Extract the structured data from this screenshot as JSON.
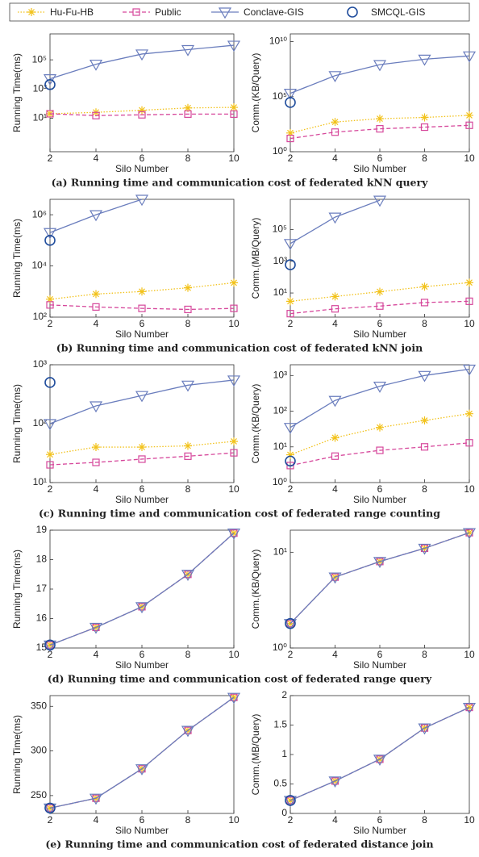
{
  "captions": [
    "(a) Running time and communication cost of federated kNN query",
    "(b) Running time and communication cost of federated kNN join",
    "(c) Running time and communication cost of federated range counting",
    "(d) Running time and communication cost of federated range query",
    "(e) Running time and communication cost of federated distance join"
  ],
  "chart_data": [
    {
      "type": "line",
      "xlabel": "Silo Number",
      "ylabel": "Running Time(ms)",
      "x": [
        2,
        4,
        6,
        8,
        10
      ],
      "xlim": [
        2,
        10
      ],
      "xticks": [
        2,
        4,
        6,
        8,
        10
      ],
      "log_y": true,
      "ylim": [
        0.05,
        6000000
      ],
      "yticks": [
        {
          "value": 10,
          "label": "10¹"
        },
        {
          "value": 1000,
          "label": "10³"
        },
        {
          "value": 100000,
          "label": "10⁵"
        }
      ],
      "series": [
        {
          "name": "Hu-Fu-HB",
          "color": "#f2c21b",
          "marker": "asterisk",
          "line_style": "dotted",
          "values": [
            20,
            25,
            35,
            50,
            55
          ]
        },
        {
          "name": "Public",
          "color": "#d6479b",
          "marker": "square",
          "line_style": "dashed",
          "values": [
            20,
            15,
            17,
            19,
            19
          ]
        },
        {
          "name": "Conclave-GIS",
          "color": "#6a7dbd",
          "marker": "triangle-down",
          "line_style": "solid",
          "values": [
            5000,
            50000,
            250000,
            500000,
            1000000
          ]
        },
        {
          "name": "SMCQL-GIS",
          "color": "#1f4c9c",
          "marker": "circle",
          "line_style": "none",
          "values": [
            2000,
            null,
            null,
            null,
            null
          ]
        }
      ]
    },
    {
      "type": "line",
      "xlabel": "Silo Number",
      "ylabel": "Comm.(KB/Query)",
      "x": [
        2,
        4,
        6,
        8,
        10
      ],
      "xlim": [
        2,
        10
      ],
      "xticks": [
        2,
        4,
        6,
        8,
        10
      ],
      "log_y": true,
      "ylim": [
        1,
        50000000000
      ],
      "yticks": [
        {
          "value": 1,
          "label": "10⁰"
        },
        {
          "value": 100000,
          "label": "10⁵"
        },
        {
          "value": 10000000000,
          "label": "10¹⁰"
        }
      ],
      "series": [
        {
          "name": "Hu-Fu-HB",
          "color": "#f2c21b",
          "marker": "asterisk",
          "line_style": "dotted",
          "values": [
            50,
            500,
            1000,
            1300,
            2000
          ]
        },
        {
          "name": "Public",
          "color": "#d6479b",
          "marker": "square",
          "line_style": "dashed",
          "values": [
            16,
            60,
            120,
            170,
            250
          ]
        },
        {
          "name": "Conclave-GIS",
          "color": "#6a7dbd",
          "marker": "triangle-down",
          "line_style": "solid",
          "values": [
            200000,
            8000000,
            80000000,
            250000000,
            500000000
          ]
        },
        {
          "name": "SMCQL-GIS",
          "color": "#1f4c9c",
          "marker": "circle",
          "line_style": "none",
          "values": [
            30000,
            null,
            null,
            null,
            null
          ]
        }
      ]
    },
    {
      "type": "line",
      "xlabel": "Silo Number",
      "ylabel": "Running Time(ms)",
      "x": [
        2,
        4,
        6,
        8,
        10
      ],
      "xlim": [
        2,
        10
      ],
      "xticks": [
        2,
        4,
        6,
        8,
        10
      ],
      "log_y": true,
      "ylim": [
        100,
        4000000
      ],
      "yticks": [
        {
          "value": 100,
          "label": "10²"
        },
        {
          "value": 10000,
          "label": "10⁴"
        },
        {
          "value": 1000000,
          "label": "10⁶"
        }
      ],
      "series": [
        {
          "name": "Hu-Fu-HB",
          "color": "#f2c21b",
          "marker": "asterisk",
          "line_style": "dotted",
          "values": [
            500,
            800,
            1000,
            1400,
            2200
          ]
        },
        {
          "name": "Public",
          "color": "#d6479b",
          "marker": "square",
          "line_style": "dashed",
          "values": [
            300,
            250,
            220,
            200,
            220
          ]
        },
        {
          "name": "Conclave-GIS",
          "color": "#6a7dbd",
          "marker": "triangle-down",
          "line_style": "solid",
          "values": [
            200000,
            1000000,
            4000000,
            null,
            null
          ]
        },
        {
          "name": "SMCQL-GIS",
          "color": "#1f4c9c",
          "marker": "circle",
          "line_style": "none",
          "values": [
            100000,
            null,
            null,
            null,
            null
          ]
        }
      ]
    },
    {
      "type": "line",
      "xlabel": "Silo Number",
      "ylabel": "Comm.(MB/Query)",
      "x": [
        2,
        4,
        6,
        8,
        10
      ],
      "xlim": [
        2,
        10
      ],
      "xticks": [
        2,
        4,
        6,
        8,
        10
      ],
      "log_y": true,
      "ylim": [
        0.3,
        8000000
      ],
      "yticks": [
        {
          "value": 10,
          "label": "10¹"
        },
        {
          "value": 1000,
          "label": "10³"
        },
        {
          "value": 100000,
          "label": "10⁵"
        }
      ],
      "series": [
        {
          "name": "Hu-Fu-HB",
          "color": "#f2c21b",
          "marker": "asterisk",
          "line_style": "dotted",
          "values": [
            3,
            6,
            12,
            25,
            45
          ]
        },
        {
          "name": "Public",
          "color": "#d6479b",
          "marker": "square",
          "line_style": "dashed",
          "values": [
            0.5,
            1,
            1.5,
            2.5,
            3
          ]
        },
        {
          "name": "Conclave-GIS",
          "color": "#6a7dbd",
          "marker": "triangle-down",
          "line_style": "solid",
          "values": [
            13000,
            600000,
            7000000,
            null,
            null
          ]
        },
        {
          "name": "SMCQL-GIS",
          "color": "#1f4c9c",
          "marker": "circle",
          "line_style": "none",
          "values": [
            600,
            null,
            null,
            null,
            null
          ]
        }
      ]
    },
    {
      "type": "line",
      "xlabel": "Silo Number",
      "ylabel": "Running Time(ms)",
      "x": [
        2,
        4,
        6,
        8,
        10
      ],
      "xlim": [
        2,
        10
      ],
      "xticks": [
        2,
        4,
        6,
        8,
        10
      ],
      "log_y": true,
      "ylim": [
        10,
        1000
      ],
      "yticks": [
        {
          "value": 10,
          "label": "10¹"
        },
        {
          "value": 100,
          "label": "10²"
        },
        {
          "value": 1000,
          "label": "10³"
        }
      ],
      "series": [
        {
          "name": "Hu-Fu-HB",
          "color": "#f2c21b",
          "marker": "asterisk",
          "line_style": "dotted",
          "values": [
            30,
            40,
            40,
            42,
            50
          ]
        },
        {
          "name": "Public",
          "color": "#d6479b",
          "marker": "square",
          "line_style": "dashed",
          "values": [
            20,
            22,
            25,
            28,
            32
          ]
        },
        {
          "name": "Conclave-GIS",
          "color": "#6a7dbd",
          "marker": "triangle-down",
          "line_style": "solid",
          "values": [
            100,
            200,
            300,
            450,
            550
          ]
        },
        {
          "name": "SMCQL-GIS",
          "color": "#1f4c9c",
          "marker": "circle",
          "line_style": "none",
          "values": [
            500,
            null,
            null,
            null,
            null
          ]
        }
      ]
    },
    {
      "type": "line",
      "xlabel": "Silo Number",
      "ylabel": "Comm.(KB/Query)",
      "x": [
        2,
        4,
        6,
        8,
        10
      ],
      "xlim": [
        2,
        10
      ],
      "xticks": [
        2,
        4,
        6,
        8,
        10
      ],
      "log_y": true,
      "ylim": [
        1,
        2000
      ],
      "yticks": [
        {
          "value": 1,
          "label": "10⁰"
        },
        {
          "value": 10,
          "label": "10¹"
        },
        {
          "value": 100,
          "label": "10²"
        },
        {
          "value": 1000,
          "label": "10³"
        }
      ],
      "series": [
        {
          "name": "Hu-Fu-HB",
          "color": "#f2c21b",
          "marker": "asterisk",
          "line_style": "dotted",
          "values": [
            6,
            18,
            35,
            55,
            85
          ]
        },
        {
          "name": "Public",
          "color": "#d6479b",
          "marker": "square",
          "line_style": "dashed",
          "values": [
            3,
            5.5,
            8,
            10,
            13
          ]
        },
        {
          "name": "Conclave-GIS",
          "color": "#6a7dbd",
          "marker": "triangle-down",
          "line_style": "solid",
          "values": [
            35,
            200,
            500,
            1000,
            1500
          ]
        },
        {
          "name": "SMCQL-GIS",
          "color": "#1f4c9c",
          "marker": "circle",
          "line_style": "none",
          "values": [
            4,
            null,
            null,
            null,
            null
          ]
        }
      ]
    },
    {
      "type": "line",
      "xlabel": "Silo Number",
      "ylabel": "Running Time(ms)",
      "x": [
        2,
        4,
        6,
        8,
        10
      ],
      "xlim": [
        2,
        10
      ],
      "xticks": [
        2,
        4,
        6,
        8,
        10
      ],
      "log_y": false,
      "ylim": [
        15,
        19
      ],
      "yticks": [
        15,
        16,
        17,
        18,
        19
      ],
      "series": [
        {
          "name": "Hu-Fu-HB",
          "color": "#f2c21b",
          "marker": "asterisk",
          "line_style": "dotted",
          "values": [
            15.1,
            15.7,
            16.4,
            17.5,
            18.9
          ]
        },
        {
          "name": "Public",
          "color": "#d6479b",
          "marker": "square",
          "line_style": "dashed",
          "values": [
            15.1,
            15.7,
            16.4,
            17.5,
            18.9
          ]
        },
        {
          "name": "Conclave-GIS",
          "color": "#6a7dbd",
          "marker": "triangle-down",
          "line_style": "solid",
          "values": [
            15.1,
            15.7,
            16.4,
            17.5,
            18.9
          ]
        },
        {
          "name": "SMCQL-GIS",
          "color": "#1f4c9c",
          "marker": "circle",
          "line_style": "none",
          "values": [
            15.1,
            null,
            null,
            null,
            null
          ]
        }
      ]
    },
    {
      "type": "line",
      "xlabel": "Silo Number",
      "ylabel": "Comm.(KB/Query)",
      "x": [
        2,
        4,
        6,
        8,
        10
      ],
      "xlim": [
        2,
        10
      ],
      "xticks": [
        2,
        4,
        6,
        8,
        10
      ],
      "log_y": true,
      "ylim": [
        1,
        17
      ],
      "yticks": [
        {
          "value": 1,
          "label": "10⁰"
        },
        {
          "value": 10,
          "label": "10¹"
        }
      ],
      "series": [
        {
          "name": "Hu-Fu-HB",
          "color": "#f2c21b",
          "marker": "asterisk",
          "line_style": "dotted",
          "values": [
            1.8,
            5.5,
            8,
            11,
            16
          ]
        },
        {
          "name": "Public",
          "color": "#d6479b",
          "marker": "square",
          "line_style": "dashed",
          "values": [
            1.8,
            5.5,
            8,
            11,
            16
          ]
        },
        {
          "name": "Conclave-GIS",
          "color": "#6a7dbd",
          "marker": "triangle-down",
          "line_style": "solid",
          "values": [
            1.8,
            5.5,
            8,
            11,
            16
          ]
        },
        {
          "name": "SMCQL-GIS",
          "color": "#1f4c9c",
          "marker": "circle",
          "line_style": "none",
          "values": [
            1.8,
            null,
            null,
            null,
            null
          ]
        }
      ]
    },
    {
      "type": "line",
      "xlabel": "Silo Number",
      "ylabel": "Running Time(ms)",
      "x": [
        2,
        4,
        6,
        8,
        10
      ],
      "xlim": [
        2,
        10
      ],
      "xticks": [
        2,
        4,
        6,
        8,
        10
      ],
      "log_y": false,
      "ylim": [
        230,
        362
      ],
      "yticks": [
        250,
        300,
        350
      ],
      "series": [
        {
          "name": "Hu-Fu-HB",
          "color": "#f2c21b",
          "marker": "asterisk",
          "line_style": "dotted",
          "values": [
            236,
            247,
            280,
            323,
            360
          ]
        },
        {
          "name": "Public",
          "color": "#d6479b",
          "marker": "square",
          "line_style": "dashed",
          "values": [
            236,
            247,
            280,
            323,
            360
          ]
        },
        {
          "name": "Conclave-GIS",
          "color": "#6a7dbd",
          "marker": "triangle-down",
          "line_style": "solid",
          "values": [
            236,
            247,
            280,
            323,
            360
          ]
        },
        {
          "name": "SMCQL-GIS",
          "color": "#1f4c9c",
          "marker": "circle",
          "line_style": "none",
          "values": [
            236,
            null,
            null,
            null,
            null
          ]
        }
      ]
    },
    {
      "type": "line",
      "xlabel": "Silo Number",
      "ylabel": "Comm.(MB/Query)",
      "x": [
        2,
        4,
        6,
        8,
        10
      ],
      "xlim": [
        2,
        10
      ],
      "xticks": [
        2,
        4,
        6,
        8,
        10
      ],
      "log_y": false,
      "ylim": [
        0,
        2
      ],
      "yticks": [
        0,
        0.5,
        1,
        1.5,
        2
      ],
      "series": [
        {
          "name": "Hu-Fu-HB",
          "color": "#f2c21b",
          "marker": "asterisk",
          "line_style": "dotted",
          "values": [
            0.22,
            0.55,
            0.92,
            1.45,
            1.8
          ]
        },
        {
          "name": "Public",
          "color": "#d6479b",
          "marker": "square",
          "line_style": "dashed",
          "values": [
            0.22,
            0.55,
            0.92,
            1.45,
            1.8
          ]
        },
        {
          "name": "Conclave-GIS",
          "color": "#6a7dbd",
          "marker": "triangle-down",
          "line_style": "solid",
          "values": [
            0.22,
            0.55,
            0.92,
            1.45,
            1.8
          ]
        },
        {
          "name": "SMCQL-GIS",
          "color": "#1f4c9c",
          "marker": "circle",
          "line_style": "none",
          "values": [
            0.22,
            null,
            null,
            null,
            null
          ]
        }
      ]
    }
  ]
}
